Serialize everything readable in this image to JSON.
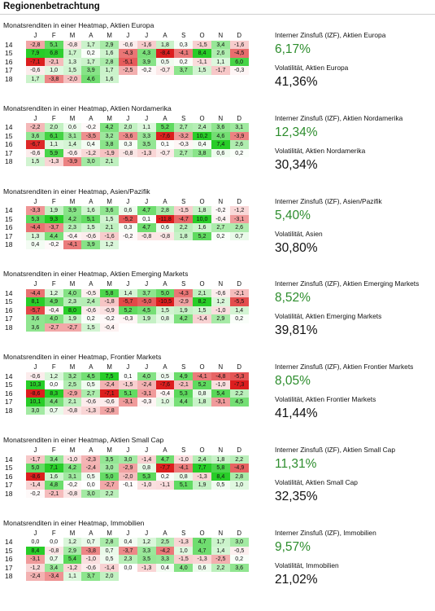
{
  "page_title": "Regionenbetrachtung",
  "months": [
    "J",
    "F",
    "M",
    "A",
    "M",
    "J",
    "J",
    "A",
    "S",
    "O",
    "N",
    "D"
  ],
  "sections": [
    {
      "title": "Monatsrenditen in einer Heatmap, Aktien Europa",
      "years": [
        "14",
        "15",
        "16",
        "17",
        "18"
      ],
      "rows": [
        [
          "-2,8",
          "5,1",
          "-0,8",
          "1,7",
          "2,9",
          "-0,6",
          "-1,6",
          "1,8",
          "0,3",
          "-1,5",
          "3,4",
          "-1,6"
        ],
        [
          "7,9",
          "6,8",
          "1,7",
          "0,2",
          "1,6",
          "-4,3",
          "4,3",
          "-8,4",
          "-4,1",
          "8,4",
          "2,6",
          "-4,5"
        ],
        [
          "-7,1",
          "-2,1",
          "1,3",
          "1,7",
          "2,8",
          "-5,1",
          "3,9",
          "0,5",
          "0,2",
          "-1,1",
          "1,1",
          "6,0"
        ],
        [
          "-0,6",
          "1,0",
          "1,5",
          "3,9",
          "1,7",
          "-2,5",
          "-0,2",
          "-0,7",
          "3,7",
          "1,5",
          "-1,7",
          "-0,3"
        ],
        [
          "1,7",
          "-3,8",
          "-2,0",
          "4,6",
          "1,6",
          "",
          "",
          "",
          "",
          "",
          "",
          ""
        ]
      ],
      "irr_label": "Interner Zinsfuß (IZF), Aktien Europa",
      "irr_value": "6,17%",
      "vol_label": "Volatilität, Aktien Europa",
      "vol_value": "41,36%"
    },
    {
      "title": "Monatsrenditen in einer Heatmap, Aktien Nordamerika",
      "years": [
        "14",
        "15",
        "16",
        "17",
        "18"
      ],
      "rows": [
        [
          "-2,2",
          "2,0",
          "0,6",
          "-0,2",
          "4,2",
          "2,0",
          "1,1",
          "5,2",
          "2,7",
          "2,4",
          "3,6",
          "3,1"
        ],
        [
          "3,6",
          "6,1",
          "3,1",
          "-3,5",
          "3,2",
          "-3,6",
          "3,3",
          "-7,6",
          "-3,2",
          "10,2",
          "4,6",
          "-3,9"
        ],
        [
          "-6,7",
          "1,1",
          "1,4",
          "0,4",
          "3,8",
          "0,3",
          "3,5",
          "0,1",
          "-0,3",
          "0,4",
          "7,4",
          "2,6"
        ],
        [
          "-0,6",
          "5,9",
          "-0,6",
          "-1,2",
          "-1,9",
          "-0,8",
          "-1,3",
          "-0,7",
          "2,7",
          "3,8",
          "0,6",
          "0,2"
        ],
        [
          "1,5",
          "-1,3",
          "-3,9",
          "3,0",
          "2,1",
          "",
          "",
          "",
          "",
          "",
          "",
          ""
        ]
      ],
      "irr_label": "Interner Zinsfuß (IZF), Aktien Nordamerika",
      "irr_value": "12,34%",
      "vol_label": "Volatilität, Aktien Nordamerika",
      "vol_value": "30,34%"
    },
    {
      "title": "Monatsrenditen in einer Heatmap, Asien/Pazifik",
      "years": [
        "14",
        "15",
        "16",
        "17",
        "18"
      ],
      "rows": [
        [
          "-3,3",
          "1,9",
          "3,9",
          "1,6",
          "3,6",
          "0,6",
          "4,7",
          "2,8",
          "-1,5",
          "1,8",
          "-0,2",
          "-1,2"
        ],
        [
          "5,3",
          "9,3",
          "4,2",
          "5,1",
          "1,5",
          "-5,2",
          "0,1",
          "-11,8",
          "-4,7",
          "10,0",
          "-0,4",
          "-3,1"
        ],
        [
          "-4,4",
          "-3,7",
          "2,3",
          "1,5",
          "2,1",
          "0,3",
          "4,7",
          "0,6",
          "2,2",
          "1,6",
          "2,7",
          "2,6"
        ],
        [
          "1,3",
          "4,4",
          "-0,4",
          "-0,6",
          "-1,6",
          "-0,2",
          "-0,8",
          "-0,8",
          "1,8",
          "5,2",
          "0,2",
          "0,7"
        ],
        [
          "0,4",
          "-0,2",
          "-4,1",
          "3,9",
          "1,2",
          "",
          "",
          "",
          "",
          "",
          "",
          ""
        ]
      ],
      "irr_label": "Interner Zinsfuß (IZF), Asien/Pazifik",
      "irr_value": "5,40%",
      "vol_label": "Volatilität, Asien",
      "vol_value": "30,80%"
    },
    {
      "title": "Monatsrenditen in einer Heatmap, Aktien Emerging Markets",
      "years": [
        "14",
        "15",
        "16",
        "17",
        "18"
      ],
      "rows": [
        [
          "-4,4",
          "1,2",
          "4,0",
          "-0,5",
          "5,8",
          "1,4",
          "3,7",
          "5,0",
          "-4,3",
          "2,1",
          "-0,6",
          "-2,1"
        ],
        [
          "8,1",
          "4,9",
          "2,3",
          "2,4",
          "-1,8",
          "-5,7",
          "-5,0",
          "-10,5",
          "-2,9",
          "8,2",
          "1,2",
          "-5,5"
        ],
        [
          "-5,7",
          "-0,4",
          "8,0",
          "-0,6",
          "-0,9",
          "5,2",
          "4,5",
          "1,5",
          "1,9",
          "1,5",
          "-1,0",
          "1,4"
        ],
        [
          "3,6",
          "4,0",
          "1,9",
          "0,2",
          "-0,2",
          "-0,3",
          "1,9",
          "0,8",
          "4,2",
          "-1,4",
          "2,9",
          "0,2"
        ],
        [
          "3,6",
          "-2,7",
          "-2,7",
          "1,5",
          "-0,4",
          "",
          "",
          "",
          "",
          "",
          "",
          ""
        ]
      ],
      "irr_label": "Interner Zinsfuß (IZF), Aktien Emerging Markets",
      "irr_value": "8,52%",
      "vol_label": "Volatilität, Aktien Emerging Markets",
      "vol_value": "39,81%"
    },
    {
      "title": "Monatsrenditen in einer Heatmap, Frontier Markets",
      "years": [
        "14",
        "15",
        "16",
        "17",
        "18"
      ],
      "rows": [
        [
          "-0,6",
          "1,2",
          "3,2",
          "4,5",
          "7,5",
          "0,1",
          "4,0",
          "0,5",
          "4,9",
          "-4,1",
          "-4,8",
          "-5,3"
        ],
        [
          "10,3",
          "0,0",
          "2,5",
          "0,5",
          "-2,4",
          "-1,5",
          "-2,4",
          "-7,6",
          "-2,1",
          "5,2",
          "-1,0",
          "-7,3"
        ],
        [
          "-8,6",
          "8,3",
          "-2,9",
          "2,7",
          "-7,1",
          "5,1",
          "-3,1",
          "-0,4",
          "5,3",
          "0,8",
          "5,4",
          "2,2"
        ],
        [
          "10,1",
          "4,4",
          "2,1",
          "-0,6",
          "-0,6",
          "-3,1",
          "-0,3",
          "1,0",
          "4,4",
          "1,8",
          "-3,1",
          "4,5"
        ],
        [
          "3,0",
          "0,7",
          "-0,8",
          "-1,3",
          "-2,8",
          "",
          "",
          "",
          "",
          "",
          "",
          ""
        ]
      ],
      "irr_label": "Interner Zinsfuß (IZF), Aktien Frontier Markets",
      "irr_value": "8,05%",
      "vol_label": "Volatilität, Aktien Frontier Markets",
      "vol_value": "41,44%"
    },
    {
      "title": "Monatsrenditen in einer Heatmap, Aktien Small Cap",
      "years": [
        "14",
        "15",
        "16",
        "17",
        "18"
      ],
      "rows": [
        [
          "-1,7",
          "3,4",
          "-1,0",
          "-2,3",
          "3,5",
          "3,0",
          "-1,4",
          "4,7",
          "-1,0",
          "2,4",
          "1,8",
          "2,2"
        ],
        [
          "5,0",
          "7,1",
          "4,2",
          "-2,4",
          "3,0",
          "-2,9",
          "0,8",
          "-7,7",
          "-4,1",
          "7,7",
          "5,8",
          "-4,9"
        ],
        [
          "-8,6",
          "1,6",
          "3,1",
          "0,5",
          "5,0",
          "-2,0",
          "5,3",
          "0,2",
          "0,8",
          "-1,3",
          "8,4",
          "2,8"
        ],
        [
          "-1,4",
          "4,8",
          "-0,2",
          "0,0",
          "-2,7",
          "-0,1",
          "-1,0",
          "-1,1",
          "5,1",
          "1,9",
          "0,5",
          "1,0"
        ],
        [
          "-0,2",
          "-2,1",
          "-0,8",
          "3,0",
          "2,2",
          "",
          "",
          "",
          "",
          "",
          "",
          ""
        ]
      ],
      "irr_label": "Interner Zinsfuß (IZF), Aktien Small Cap",
      "irr_value": "11,31%",
      "vol_label": "Volatilität, Aktien Small Cap",
      "vol_value": "32,35%"
    },
    {
      "title": "Monatsrenditen in einer Heatmap, Immobilien",
      "years": [
        "14",
        "15",
        "16",
        "17",
        "18"
      ],
      "rows": [
        [
          "0,0",
          "0,0",
          "1,2",
          "0,7",
          "2,8",
          "0,4",
          "1,2",
          "2,5",
          "-1,3",
          "4,7",
          "1,7",
          "3,0"
        ],
        [
          "8,4",
          "-0,8",
          "2,9",
          "-3,8",
          "0,7",
          "-3,7",
          "3,3",
          "-4,2",
          "1,0",
          "4,7",
          "1,4",
          "-0,5"
        ],
        [
          "-3,1",
          "0,7",
          "5,4",
          "-1,0",
          "0,5",
          "2,3",
          "3,5",
          "3,3",
          "-1,5",
          "-1,3",
          "-2,5",
          "0,2"
        ],
        [
          "-1,2",
          "3,4",
          "-1,2",
          "-0,6",
          "-1,4",
          "0,0",
          "-1,3",
          "0,4",
          "4,0",
          "0,6",
          "2,2",
          "3,6"
        ],
        [
          "-2,4",
          "-3,4",
          "1,1",
          "3,7",
          "2,0",
          "",
          "",
          "",
          "",
          "",
          "",
          ""
        ]
      ],
      "irr_label": "Interner Zinsfuß (IZF), Immobilien",
      "irr_value": "9,57%",
      "vol_label": "Volatilität, Immobilien",
      "vol_value": "21,02%"
    }
  ]
}
